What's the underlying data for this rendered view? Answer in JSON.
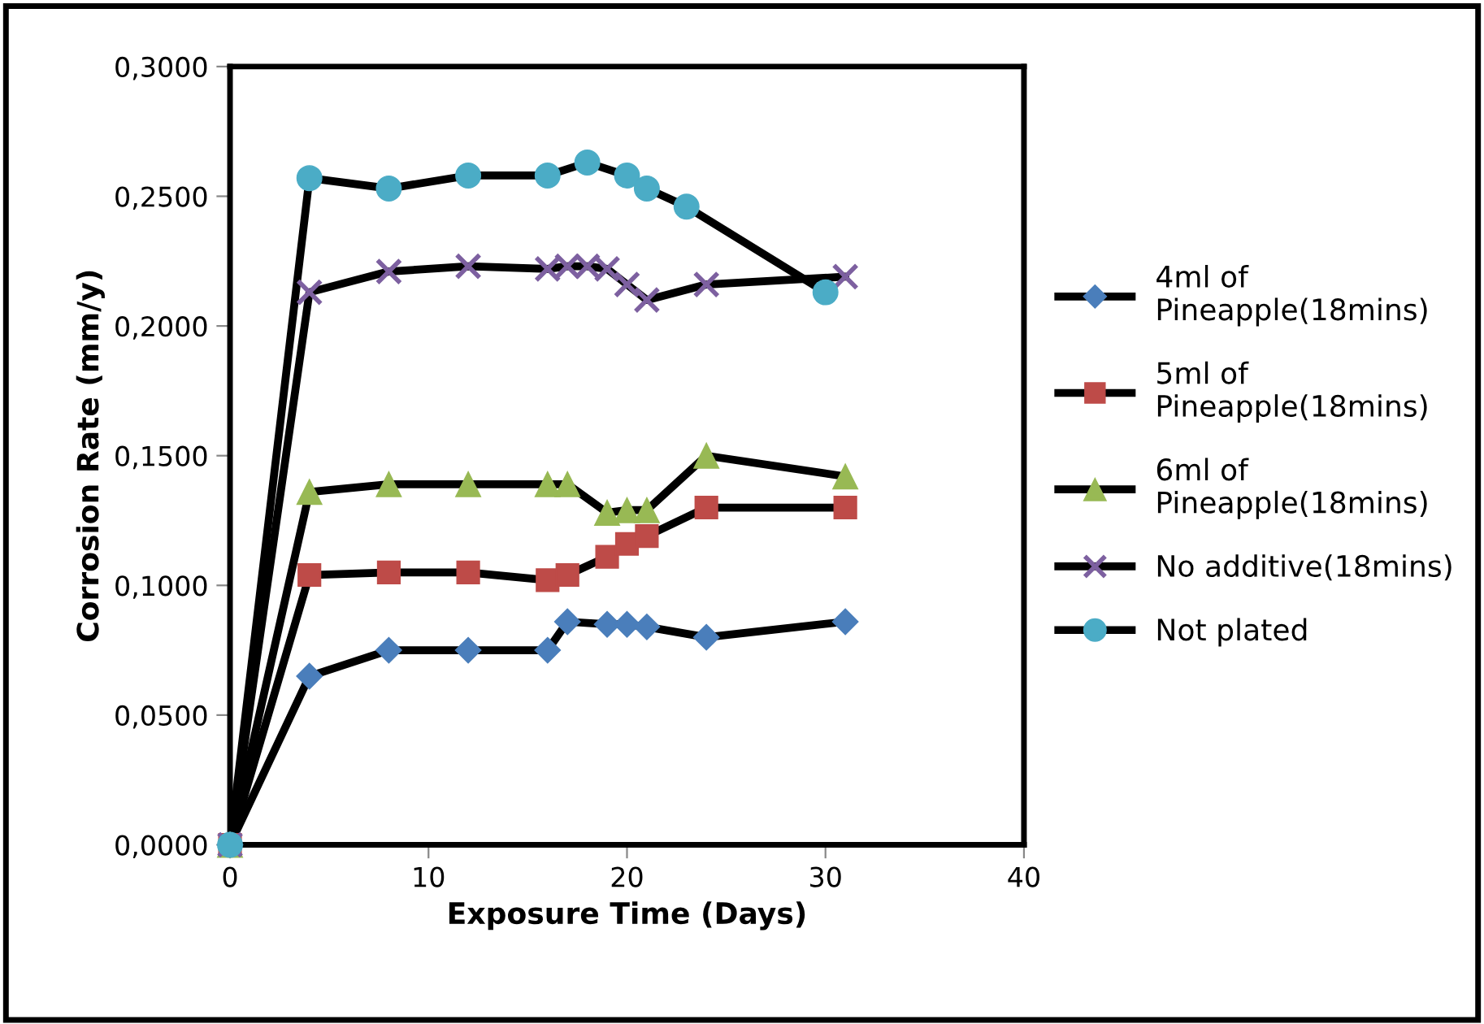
{
  "chart_data": {
    "type": "line",
    "xlabel": "Exposure Time (Days)",
    "ylabel": "Corrosion Rate (mm/y)",
    "xlim": [
      0,
      40
    ],
    "xticks": [
      0,
      10,
      20,
      30,
      40
    ],
    "ylim": [
      0,
      0.3
    ],
    "yticks": [
      {
        "value": 0,
        "label": "0,0000"
      },
      {
        "value": 0.05,
        "label": "0,0500"
      },
      {
        "value": 0.1,
        "label": "0,1000"
      },
      {
        "value": 0.15,
        "label": "0,1500"
      },
      {
        "value": 0.2,
        "label": "0,2000"
      },
      {
        "value": 0.25,
        "label": "0,2500"
      },
      {
        "value": 0.3,
        "label": "0,3000"
      }
    ],
    "grid": false,
    "legend": "right",
    "series": [
      {
        "name": "4ml of Pineapple(18mins)",
        "color": "#4a7ebb",
        "marker": "diamond",
        "x": [
          0,
          4,
          8,
          12,
          16,
          17,
          19,
          20,
          21,
          24,
          31
        ],
        "values": [
          0,
          0.065,
          0.075,
          0.075,
          0.075,
          0.086,
          0.085,
          0.085,
          0.084,
          0.08,
          0.086
        ]
      },
      {
        "name": "5ml of Pineapple(18mins)",
        "color": "#be4b48",
        "marker": "square",
        "x": [
          0,
          4,
          8,
          12,
          16,
          17,
          19,
          20,
          21,
          24,
          31
        ],
        "values": [
          0,
          0.104,
          0.105,
          0.105,
          0.102,
          0.104,
          0.111,
          0.116,
          0.119,
          0.13,
          0.13
        ]
      },
      {
        "name": "6ml of Pineapple(18mins)",
        "color": "#98b954",
        "marker": "triangle",
        "x": [
          0,
          4,
          8,
          12,
          16,
          17,
          19,
          20,
          21,
          24,
          31
        ],
        "values": [
          0,
          0.136,
          0.139,
          0.139,
          0.139,
          0.139,
          0.128,
          0.129,
          0.129,
          0.15,
          0.142
        ]
      },
      {
        "name": "No additive(18mins)",
        "color": "#7d60a0",
        "marker": "cross",
        "x": [
          0,
          4,
          8,
          12,
          16,
          17,
          18,
          19,
          20,
          21,
          24,
          31
        ],
        "values": [
          0,
          0.213,
          0.221,
          0.223,
          0.222,
          0.223,
          0.223,
          0.222,
          0.216,
          0.21,
          0.216,
          0.219
        ]
      },
      {
        "name": "Not plated",
        "color": "#4bacc6",
        "marker": "circle",
        "x": [
          0,
          4,
          8,
          12,
          16,
          18,
          20,
          21,
          23,
          30
        ],
        "values": [
          0,
          0.257,
          0.253,
          0.258,
          0.258,
          0.263,
          0.258,
          0.253,
          0.246,
          0.213
        ]
      }
    ]
  }
}
